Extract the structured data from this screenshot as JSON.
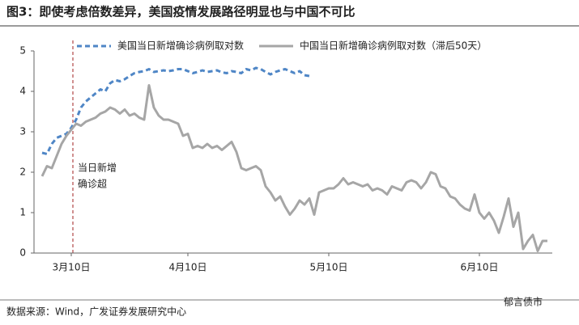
{
  "chart_data": {
    "type": "line",
    "title": "图3：即使考虑倍数差异，美国疫情发展路径明显也与中国不可比",
    "source": "数据来源：Wind，广发证券发展研究中心",
    "watermark": "郁言债市",
    "annotation": [
      "当日新增",
      "确诊超"
    ],
    "categories": [
      null,
      null,
      null,
      null,
      null,
      null,
      "3月10日",
      null,
      null,
      null,
      null,
      null,
      null,
      null,
      null,
      null,
      null,
      null,
      null,
      null,
      null,
      null,
      null,
      null,
      null,
      null,
      null,
      null,
      null,
      null,
      "4月10日",
      null,
      null,
      null,
      null,
      null,
      null,
      null,
      null,
      null,
      null,
      null,
      null,
      null,
      null,
      null,
      null,
      null,
      null,
      null,
      null,
      null,
      null,
      null,
      null,
      null,
      null,
      null,
      null,
      "5月10日",
      null,
      null,
      null,
      null,
      null,
      null,
      null,
      null,
      null,
      null,
      null,
      null,
      null,
      null,
      null,
      null,
      null,
      null,
      null,
      null,
      null,
      null,
      null,
      null,
      null,
      null,
      null,
      null,
      null,
      null,
      "6月10日",
      null,
      null,
      null,
      null,
      null,
      null,
      null,
      null,
      null,
      null,
      null,
      null,
      null,
      null
    ],
    "series": [
      {
        "name": "美国当日新增确诊病例取对数",
        "color": "#4f86c6",
        "dashed": true,
        "values": [
          2.48,
          2.45,
          2.7,
          2.85,
          2.9,
          2.95,
          3.1,
          3.3,
          3.6,
          3.75,
          3.85,
          3.95,
          4.05,
          4.0,
          4.2,
          4.28,
          4.25,
          4.3,
          4.38,
          4.45,
          4.48,
          4.5,
          4.55,
          4.48,
          4.5,
          4.52,
          4.5,
          4.52,
          4.55,
          4.55,
          4.5,
          4.45,
          4.48,
          4.52,
          4.48,
          4.5,
          4.52,
          4.47,
          4.45,
          4.5,
          4.48,
          4.45,
          4.55,
          4.52,
          4.58,
          4.55,
          4.48,
          4.42,
          4.48,
          4.52,
          4.55,
          4.5,
          4.45,
          4.5,
          4.4,
          4.38,
          null,
          null,
          null,
          null,
          null,
          null,
          null,
          null,
          null,
          null,
          null,
          null,
          null,
          null,
          null,
          null,
          null,
          null,
          null,
          null,
          null,
          null,
          null,
          null,
          null,
          null,
          null,
          null,
          null,
          null,
          null,
          null,
          null,
          null,
          null,
          null,
          null,
          null,
          null,
          null,
          null,
          null,
          null,
          null,
          null,
          null,
          null,
          null,
          null
        ]
      },
      {
        "name": "中国当日新增确诊病例取对数（滞后50天）",
        "color": "#a6a6a6",
        "dashed": false,
        "values": [
          1.9,
          2.15,
          2.1,
          2.4,
          2.7,
          2.9,
          3.05,
          3.2,
          3.15,
          3.25,
          3.3,
          3.35,
          3.45,
          3.5,
          3.6,
          3.55,
          3.45,
          3.55,
          3.4,
          3.45,
          3.35,
          3.3,
          4.15,
          3.6,
          3.4,
          3.3,
          3.3,
          3.25,
          3.2,
          2.9,
          2.95,
          2.6,
          2.65,
          2.6,
          2.7,
          2.6,
          2.65,
          2.55,
          2.65,
          2.75,
          2.5,
          2.1,
          2.05,
          2.1,
          2.15,
          2.05,
          1.65,
          1.5,
          1.3,
          1.4,
          1.15,
          0.95,
          1.1,
          1.3,
          1.2,
          1.35,
          0.95,
          1.5,
          1.55,
          1.6,
          1.6,
          1.7,
          1.85,
          1.7,
          1.75,
          1.7,
          1.65,
          1.7,
          1.55,
          1.6,
          1.55,
          1.45,
          1.65,
          1.6,
          1.55,
          1.75,
          1.8,
          1.75,
          1.6,
          1.75,
          2.0,
          1.95,
          1.65,
          1.6,
          1.4,
          1.35,
          1.2,
          1.1,
          1.05,
          1.45,
          1.0,
          0.85,
          1.0,
          0.8,
          0.5,
          0.9,
          1.35,
          0.65,
          1.0,
          0.1,
          0.3,
          0.45,
          0.05,
          0.3,
          0.3
        ]
      }
    ],
    "ylim": [
      0,
      5
    ],
    "yticks": [
      0,
      1,
      2,
      3,
      4,
      5
    ]
  }
}
